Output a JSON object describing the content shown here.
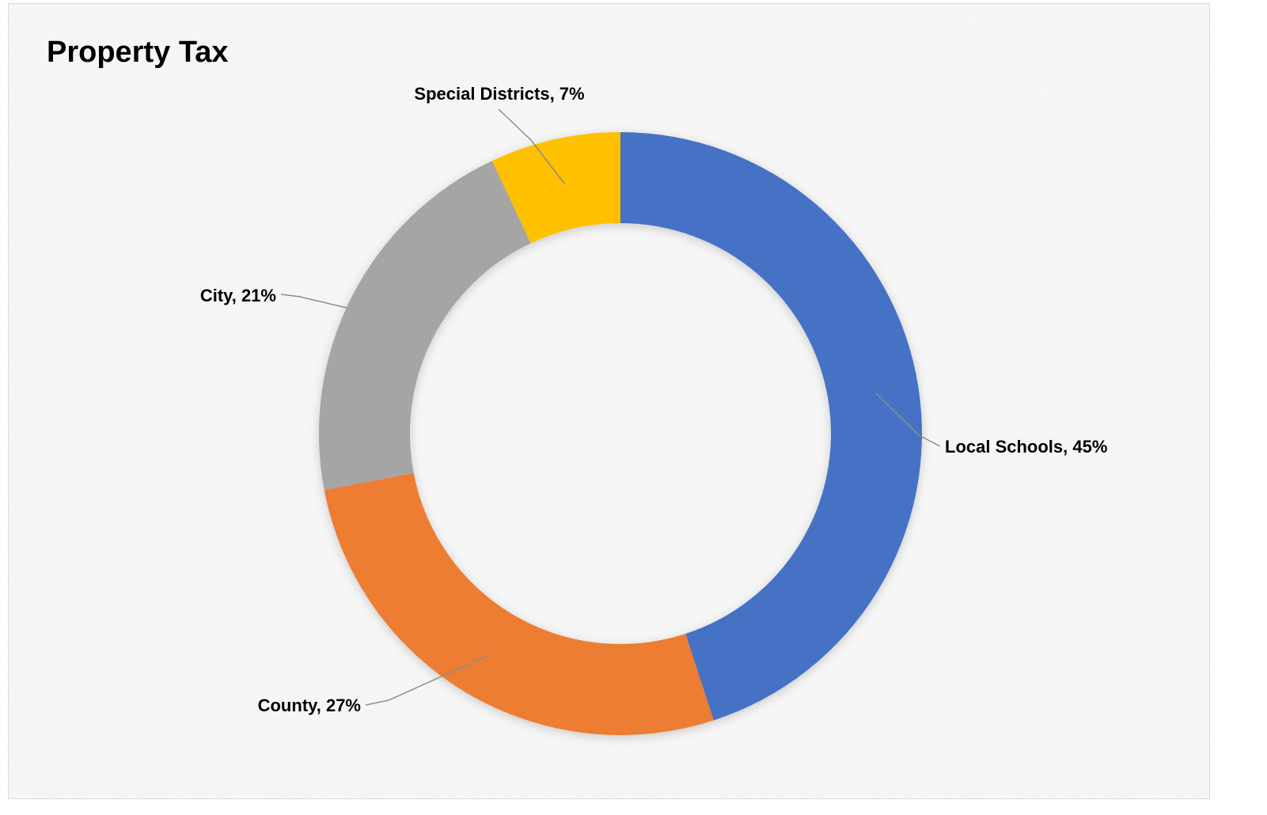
{
  "chart_data": {
    "type": "pie",
    "variant": "donut",
    "title": "Property Tax",
    "slices": [
      {
        "name": "Local Schools",
        "value": 45,
        "label": "Local Schools, 45%",
        "color": "#4472c4"
      },
      {
        "name": "County",
        "value": 27,
        "label": "County, 27%",
        "color": "#ed7d31"
      },
      {
        "name": "City",
        "value": 21,
        "label": "City, 21%",
        "color": "#a5a5a5"
      },
      {
        "name": "Special Districts",
        "value": 7,
        "label": "Special Districts, 7%",
        "color": "#ffc000"
      }
    ],
    "legend": "none",
    "start_angle": "12 o'clock",
    "direction": "clockwise"
  }
}
